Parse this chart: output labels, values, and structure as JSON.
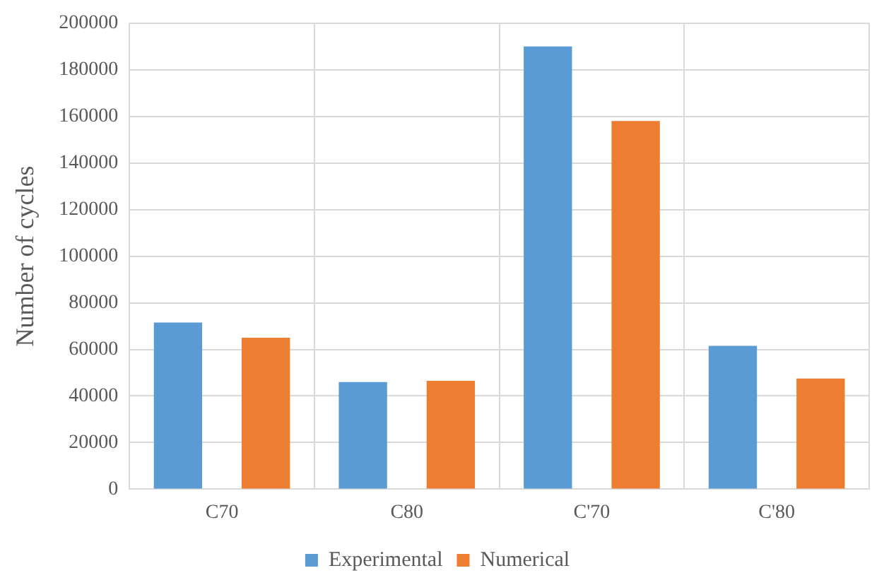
{
  "chart_data": {
    "type": "bar",
    "ylabel": "Number of cycles",
    "categories": [
      "C70",
      "C80",
      "C'70",
      "C'80"
    ],
    "series": [
      {
        "name": "Experimental",
        "color": "#5b9bd5",
        "values": [
          71500,
          46000,
          190000,
          61500
        ]
      },
      {
        "name": "Numerical",
        "color": "#ed7d31",
        "values": [
          65000,
          46500,
          158000,
          47500
        ]
      }
    ],
    "ylim": [
      0,
      200000
    ],
    "yticks": [
      0,
      20000,
      40000,
      60000,
      80000,
      100000,
      120000,
      140000,
      160000,
      180000,
      200000
    ],
    "grid": true,
    "legend": "bottom"
  }
}
